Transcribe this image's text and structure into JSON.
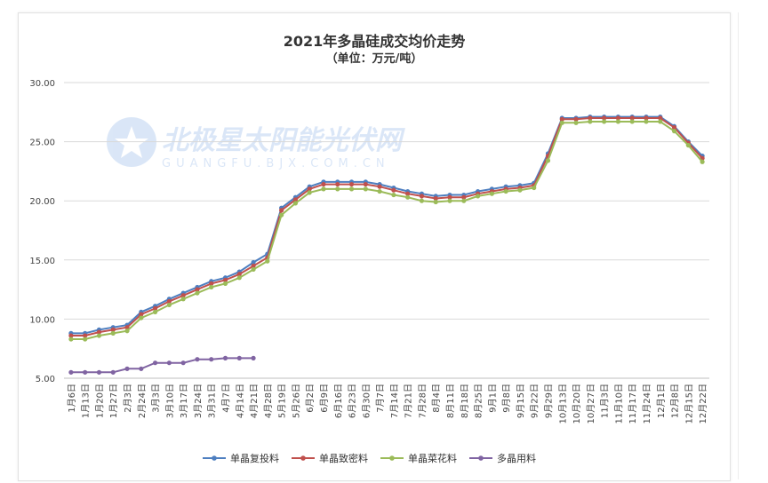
{
  "chart_data": {
    "type": "line",
    "title": "2021年多晶硅成交均价走势",
    "subtitle": "（单位：万元/吨）",
    "ylim": [
      5,
      30
    ],
    "yticks": [
      "5.00",
      "10.00",
      "15.00",
      "20.00",
      "25.00",
      "30.00"
    ],
    "grid": true,
    "legend_position": "bottom",
    "watermark": {
      "cn": "北极星太阳能光伏网",
      "en": "GUANGFU.BJX.COM.CN"
    },
    "categories": [
      "1月6日",
      "1月13日",
      "1月20日",
      "1月27日",
      "2月3日",
      "2月24日",
      "3月3日",
      "3月10日",
      "3月17日",
      "3月24日",
      "3月31日",
      "4月7日",
      "4月14日",
      "4月21日",
      "4月28日",
      "5月19日",
      "5月26日",
      "6月2日",
      "6月9日",
      "6月16日",
      "6月23日",
      "6月30日",
      "7月7日",
      "7月14日",
      "7月21日",
      "7月28日",
      "8月4日",
      "8月11日",
      "8月18日",
      "8月25日",
      "9月1日",
      "9月8日",
      "9月15日",
      "9月22日",
      "9月29日",
      "10月13日",
      "10月20日",
      "10月27日",
      "11月3日",
      "11月10日",
      "11月17日",
      "11月24日",
      "12月1日",
      "12月8日",
      "12月15日",
      "12月22日"
    ],
    "series": [
      {
        "name": "单晶复投料",
        "color": "#4e7fc0",
        "values": [
          8.8,
          8.8,
          9.1,
          9.3,
          9.5,
          10.6,
          11.1,
          11.7,
          12.2,
          12.7,
          13.2,
          13.5,
          14.0,
          14.8,
          15.5,
          19.4,
          20.3,
          21.2,
          21.6,
          21.6,
          21.6,
          21.6,
          21.4,
          21.1,
          20.8,
          20.6,
          20.4,
          20.5,
          20.5,
          20.8,
          21.0,
          21.2,
          21.3,
          21.5,
          24.0,
          27.0,
          27.0,
          27.1,
          27.1,
          27.1,
          27.1,
          27.1,
          27.1,
          26.3,
          25.0,
          23.8
        ]
      },
      {
        "name": "单晶致密料",
        "color": "#c0504d",
        "values": [
          8.6,
          8.6,
          8.9,
          9.1,
          9.3,
          10.4,
          10.9,
          11.5,
          12.0,
          12.5,
          13.0,
          13.3,
          13.8,
          14.5,
          15.2,
          19.2,
          20.1,
          21.0,
          21.4,
          21.4,
          21.4,
          21.4,
          21.2,
          20.9,
          20.6,
          20.4,
          20.2,
          20.3,
          20.3,
          20.6,
          20.8,
          21.0,
          21.1,
          21.3,
          23.8,
          26.9,
          26.9,
          27.0,
          27.0,
          27.0,
          27.0,
          27.0,
          27.0,
          26.2,
          24.9,
          23.6
        ]
      },
      {
        "name": "单晶菜花料",
        "color": "#9bbb59",
        "values": [
          8.3,
          8.3,
          8.6,
          8.8,
          9.0,
          10.1,
          10.6,
          11.2,
          11.7,
          12.2,
          12.7,
          13.0,
          13.5,
          14.2,
          14.9,
          18.8,
          19.8,
          20.7,
          21.0,
          21.0,
          21.0,
          21.0,
          20.8,
          20.5,
          20.3,
          20.0,
          19.9,
          20.0,
          20.0,
          20.4,
          20.6,
          20.8,
          20.9,
          21.1,
          23.4,
          26.6,
          26.6,
          26.7,
          26.7,
          26.7,
          26.7,
          26.7,
          26.7,
          25.9,
          24.7,
          23.3
        ]
      },
      {
        "name": "多晶用料",
        "color": "#8064a2",
        "values": [
          5.5,
          5.5,
          5.5,
          5.5,
          5.8,
          5.8,
          6.3,
          6.3,
          6.3,
          6.6,
          6.6,
          6.7,
          6.7,
          6.7,
          null,
          null,
          null,
          null,
          null,
          null,
          null,
          null,
          null,
          null,
          null,
          null,
          null,
          null,
          null,
          null,
          null,
          null,
          null,
          null,
          null,
          null,
          null,
          null,
          null,
          null,
          null,
          null,
          null,
          null,
          null,
          null
        ]
      }
    ]
  }
}
